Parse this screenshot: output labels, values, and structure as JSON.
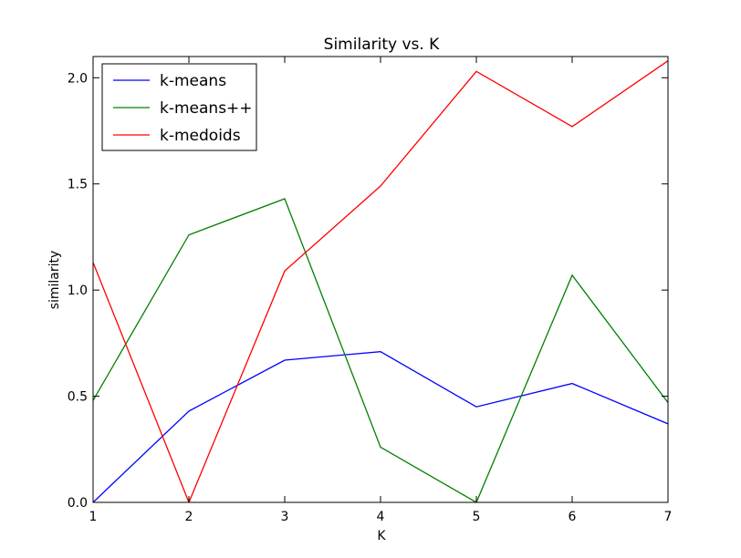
{
  "chart_data": {
    "type": "line",
    "title": "Similarity vs. K",
    "xlabel": "K",
    "ylabel": "similarity",
    "xlim": [
      1,
      7
    ],
    "ylim": [
      0,
      2.1
    ],
    "xticks": [
      1,
      2,
      3,
      4,
      5,
      6,
      7
    ],
    "xtick_labels": [
      "1",
      "2",
      "3",
      "4",
      "5",
      "6",
      "7"
    ],
    "yticks": [
      0,
      0.5,
      1.0,
      1.5,
      2.0
    ],
    "ytick_labels": [
      "0.0",
      "0.5",
      "1.0",
      "1.5",
      "2.0"
    ],
    "grid": false,
    "legend_position": "top-left",
    "x": [
      1,
      2,
      3,
      4,
      5,
      6,
      7
    ],
    "series": [
      {
        "name": "k-means",
        "color": "#0000ff",
        "values": [
          0.0,
          0.43,
          0.67,
          0.71,
          0.45,
          0.56,
          0.37
        ]
      },
      {
        "name": "k-means++",
        "color": "#008000",
        "values": [
          0.48,
          1.26,
          1.43,
          0.26,
          0.0,
          1.07,
          0.47
        ]
      },
      {
        "name": "k-medoids",
        "color": "#ff0000",
        "values": [
          1.13,
          0.0,
          1.09,
          1.49,
          2.03,
          1.77,
          2.08
        ]
      }
    ]
  }
}
